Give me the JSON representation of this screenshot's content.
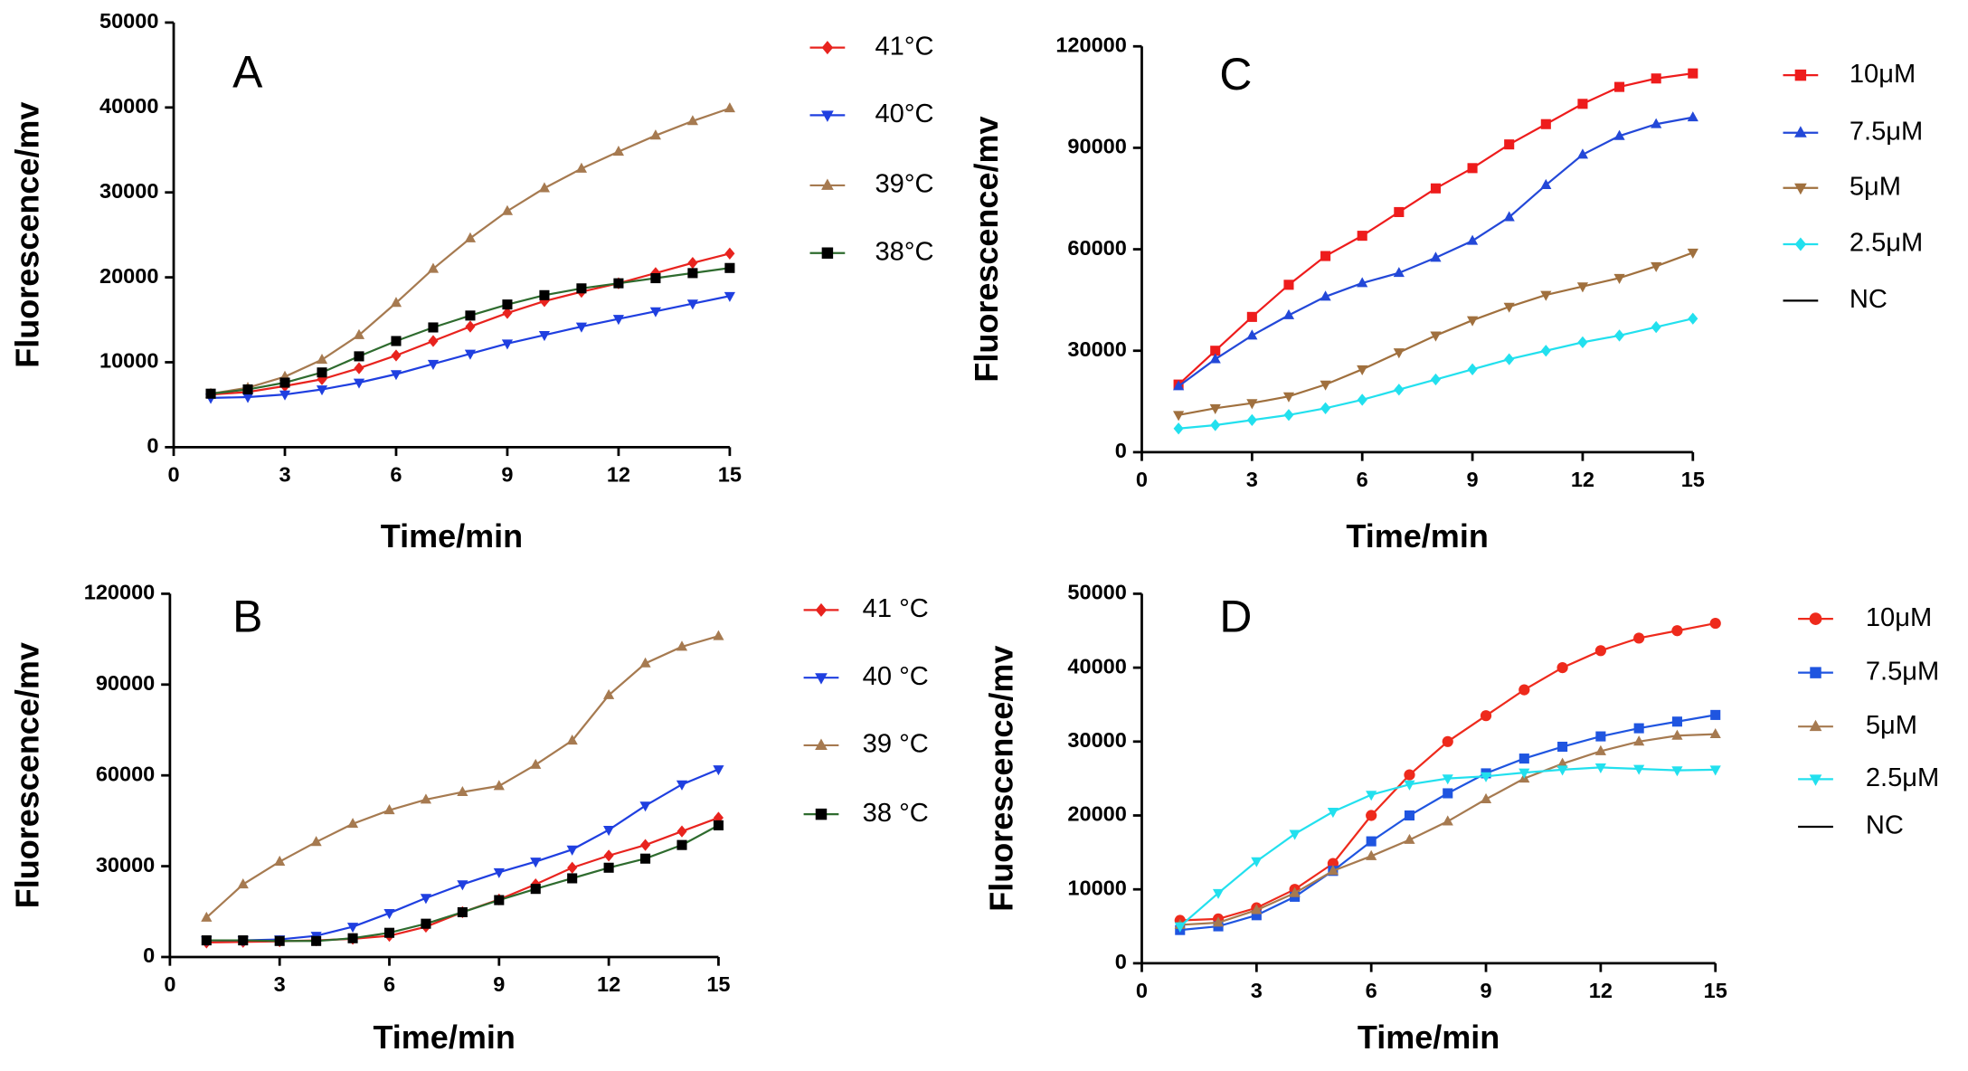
{
  "chart_data": [
    {
      "type": "line",
      "panel": "A",
      "x_label": "Time/min",
      "y_label": "Fluorescence/mv",
      "x": [
        1,
        2,
        3,
        4,
        5,
        6,
        7,
        8,
        9,
        10,
        11,
        12,
        13,
        14,
        15
      ],
      "xlim": [
        0,
        15
      ],
      "xticks": [
        0,
        3,
        6,
        9,
        12,
        15
      ],
      "ylim": [
        0,
        50000
      ],
      "yticks": [
        0,
        10000,
        20000,
        30000,
        40000,
        50000
      ],
      "series": [
        {
          "name": "41°C",
          "color": "#e8231e",
          "marker": "diamond",
          "values": [
            6200,
            6500,
            7200,
            8000,
            9300,
            10800,
            12500,
            14200,
            15800,
            17200,
            18300,
            19300,
            20500,
            21700,
            22800
          ]
        },
        {
          "name": "40°C",
          "color": "#1f3fe0",
          "marker": "triangle-down",
          "values": [
            5800,
            5900,
            6200,
            6800,
            7600,
            8600,
            9800,
            11000,
            12200,
            13200,
            14200,
            15100,
            16000,
            16900,
            17800
          ]
        },
        {
          "name": "39°C",
          "color": "#a67a50",
          "marker": "triangle-up",
          "values": [
            6300,
            7000,
            8300,
            10300,
            13200,
            17000,
            21000,
            24600,
            27800,
            30500,
            32800,
            34800,
            36700,
            38400,
            39900
          ]
        },
        {
          "name": "38°C",
          "color": "#2e6b2e",
          "marker_color": "#000000",
          "marker": "square",
          "values": [
            6300,
            6800,
            7600,
            8800,
            10700,
            12500,
            14100,
            15500,
            16800,
            17900,
            18700,
            19300,
            19900,
            20500,
            21100
          ]
        }
      ]
    },
    {
      "type": "line",
      "panel": "B",
      "x_label": "Time/min",
      "y_label": "Fluorescence/mv",
      "x": [
        1,
        2,
        3,
        4,
        5,
        6,
        7,
        8,
        9,
        10,
        11,
        12,
        13,
        14,
        15
      ],
      "xlim": [
        0,
        15
      ],
      "xticks": [
        0,
        3,
        6,
        9,
        12,
        15
      ],
      "ylim": [
        0,
        120000
      ],
      "yticks": [
        0,
        30000,
        60000,
        90000,
        120000
      ],
      "series": [
        {
          "name": "41 °C",
          "color": "#e8231e",
          "marker": "diamond",
          "values": [
            4800,
            5000,
            5200,
            5500,
            6000,
            7000,
            10000,
            14800,
            19000,
            24000,
            29500,
            33500,
            37000,
            41500,
            46000
          ]
        },
        {
          "name": "40 °C",
          "color": "#1f3fe0",
          "marker": "triangle-down",
          "values": [
            5500,
            5500,
            5800,
            7000,
            10000,
            14500,
            19500,
            24000,
            28000,
            31500,
            35500,
            42000,
            50000,
            57000,
            62000
          ]
        },
        {
          "name": "39 °C",
          "color": "#a67a50",
          "marker": "triangle-up",
          "values": [
            13000,
            24000,
            31500,
            38000,
            44000,
            48500,
            52000,
            54500,
            56500,
            63500,
            71500,
            86500,
            97000,
            102500,
            106000
          ]
        },
        {
          "name": "38 °C",
          "color": "#2e6b2e",
          "marker_color": "#000000",
          "marker": "square",
          "values": [
            5500,
            5500,
            5300,
            5300,
            6200,
            8000,
            11000,
            14800,
            18800,
            22500,
            26000,
            29500,
            32500,
            37000,
            43500
          ]
        }
      ]
    },
    {
      "type": "line",
      "panel": "C",
      "x_label": "Time/min",
      "y_label": "Fluorescence/mv",
      "x": [
        1,
        2,
        3,
        4,
        5,
        6,
        7,
        8,
        9,
        10,
        11,
        12,
        13,
        14,
        15
      ],
      "xlim": [
        0,
        15
      ],
      "xticks": [
        0,
        3,
        6,
        9,
        12,
        15
      ],
      "ylim": [
        0,
        120000
      ],
      "yticks": [
        0,
        30000,
        60000,
        90000,
        120000
      ],
      "series": [
        {
          "name": "10μM",
          "color": "#ee1c1c",
          "marker": "square",
          "values": [
            20000,
            30000,
            40000,
            49500,
            58000,
            64000,
            71000,
            78000,
            84000,
            91000,
            97000,
            103000,
            108000,
            110500,
            112000
          ]
        },
        {
          "name": "7.5μM",
          "color": "#2348d8",
          "marker": "triangle-up",
          "values": [
            19500,
            27500,
            34500,
            40500,
            46000,
            50000,
            53000,
            57500,
            62500,
            69500,
            79000,
            88000,
            93500,
            97000,
            99000
          ]
        },
        {
          "name": "5μM",
          "color": "#a0703e",
          "marker": "triangle-down",
          "values": [
            11000,
            13000,
            14500,
            16500,
            20000,
            24500,
            29500,
            34500,
            39000,
            43000,
            46500,
            49000,
            51500,
            55000,
            59000
          ]
        },
        {
          "name": "2.5μM",
          "color": "#22e0ee",
          "marker": "diamond",
          "values": [
            7000,
            8000,
            9500,
            11000,
            13000,
            15500,
            18500,
            21500,
            24500,
            27500,
            30000,
            32500,
            34500,
            37000,
            39500
          ]
        },
        {
          "name": "NC",
          "color": "#000000",
          "marker": "none",
          "values": [
            null,
            null,
            null,
            null,
            null,
            null,
            null,
            null,
            null,
            null,
            null,
            null,
            null,
            null,
            null
          ]
        }
      ]
    },
    {
      "type": "line",
      "panel": "D",
      "x_label": "Time/min",
      "y_label": "Fluorescence/mv",
      "x": [
        1,
        2,
        3,
        4,
        5,
        6,
        7,
        8,
        9,
        10,
        11,
        12,
        13,
        14,
        15
      ],
      "xlim": [
        0,
        15
      ],
      "xticks": [
        0,
        3,
        6,
        9,
        12,
        15
      ],
      "ylim": [
        0,
        50000
      ],
      "yticks": [
        0,
        10000,
        20000,
        30000,
        40000,
        50000
      ],
      "series": [
        {
          "name": "10μM",
          "color": "#ee2a1c",
          "marker": "circle",
          "values": [
            5800,
            6000,
            7500,
            10000,
            13500,
            20000,
            25500,
            30000,
            33500,
            37000,
            40000,
            42300,
            44000,
            45000,
            46000
          ]
        },
        {
          "name": "7.5μM",
          "color": "#1f55e0",
          "marker": "square",
          "values": [
            4500,
            5000,
            6500,
            9000,
            12500,
            16500,
            20000,
            23000,
            25700,
            27700,
            29300,
            30700,
            31800,
            32700,
            33600
          ]
        },
        {
          "name": "5μM",
          "color": "#a67a50",
          "marker": "triangle-up",
          "values": [
            5200,
            5500,
            7200,
            9500,
            12500,
            14500,
            16700,
            19200,
            22200,
            25000,
            27000,
            28700,
            30000,
            30800,
            31000
          ]
        },
        {
          "name": "2.5μM",
          "color": "#22e0ee",
          "marker": "triangle-down",
          "values": [
            5000,
            9500,
            13800,
            17500,
            20500,
            22800,
            24200,
            25000,
            25300,
            25800,
            26200,
            26500,
            26300,
            26100,
            26200
          ]
        },
        {
          "name": "NC",
          "color": "#000000",
          "marker": "none",
          "values": [
            null,
            null,
            null,
            null,
            null,
            null,
            null,
            null,
            null,
            null,
            null,
            null,
            null,
            null,
            null
          ]
        }
      ]
    }
  ]
}
